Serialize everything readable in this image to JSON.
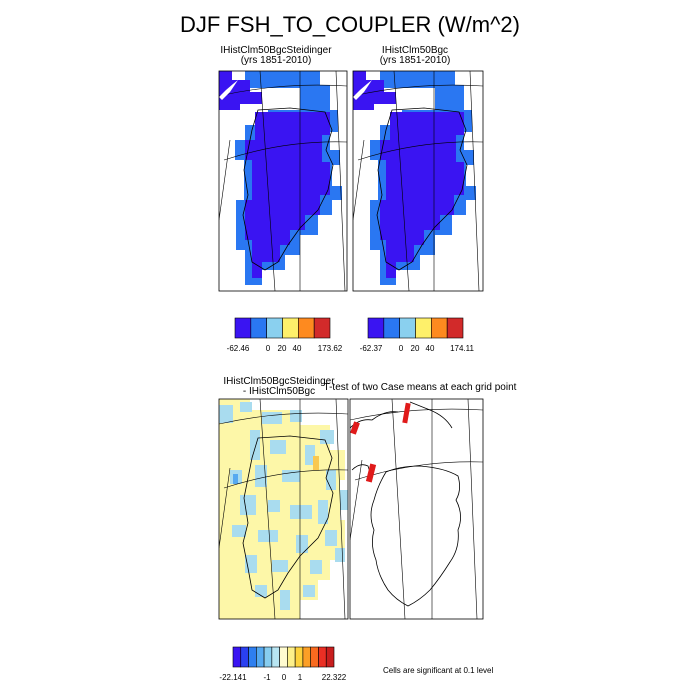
{
  "title": "DJF FSH_TO_COUPLER (W/m^2)",
  "panels": [
    {
      "title": "IHistClm50BgcSteidinger",
      "subtitle": "(yrs 1851-2010)"
    },
    {
      "title": "IHistClm50Bgc",
      "subtitle": "(yrs 1851-2010)"
    },
    {
      "title": "IHistClm50BgcSteidinger",
      "subtitle": "- IHistClm50Bgc"
    },
    {
      "title": "T-test of two Case means at each grid point",
      "subtitle": ""
    }
  ],
  "colorbars": [
    {
      "colors": [
        "#3a14f2",
        "#2a77f2",
        "#8ad0ef",
        "#fef06a",
        "#fe8a1f",
        "#d22a2a"
      ],
      "labels": [
        "-62.46",
        "0",
        "20",
        "40",
        "173.62"
      ]
    },
    {
      "colors": [
        "#3a14f2",
        "#2a77f2",
        "#8ad0ef",
        "#fef06a",
        "#fe8a1f",
        "#d22a2a"
      ],
      "labels": [
        "-62.37",
        "0",
        "20",
        "40",
        "174.11"
      ]
    },
    {
      "colors": [
        "#3a14f2",
        "#2a40f0",
        "#2e7ff0",
        "#55a9f0",
        "#87cdef",
        "#b8e5f2",
        "#fffbd0",
        "#fdf08a",
        "#fdd23c",
        "#fb9f26",
        "#f86a1f",
        "#ea2f24",
        "#c81e1e"
      ],
      "labels": [
        "-22.141",
        "-1",
        "0",
        "1",
        "22.322"
      ]
    }
  ],
  "note": "Cells are significant at 0.1 level",
  "map_colors": {
    "land_blue": "#3a14f2",
    "ocean_blue": "#2a77f2",
    "diff_yellow": "#fdf7a8",
    "diff_lightblue": "#a9dcef",
    "diff_orange": "#f9c850",
    "sig_red": "#e01a1a"
  }
}
